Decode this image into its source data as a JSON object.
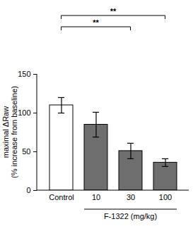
{
  "chart_data": {
    "type": "bar",
    "y_label": [
      "maximal ΔRaw",
      "(% increase from baseline)"
    ],
    "categories": [
      "Control",
      "10",
      "30",
      "100"
    ],
    "values": [
      110,
      85,
      51,
      36
    ],
    "errors": [
      10,
      16,
      10,
      5
    ],
    "colors": [
      "#ffffff",
      "#6e6e6e",
      "#6e6e6e",
      "#6e6e6e"
    ],
    "ylim": [
      0,
      150
    ],
    "yticks": [
      0,
      50,
      100,
      150
    ],
    "grid": false,
    "x_group_label": {
      "text": "F-1322 (mg/kg)",
      "categories": [
        "10",
        "30",
        "100"
      ]
    },
    "annotations": [
      {
        "text": "**",
        "from": "Control",
        "to": "30"
      },
      {
        "text": "**",
        "from": "Control",
        "to": "100"
      }
    ]
  }
}
